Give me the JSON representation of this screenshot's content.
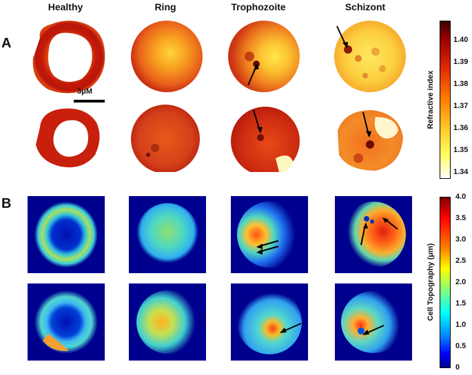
{
  "columns": [
    "Healthy",
    "Ring",
    "Trophozoite",
    "Schizont"
  ],
  "panels": [
    "A",
    "B"
  ],
  "scale_bar": "3μM",
  "colorbar_a": {
    "label": "Refractive index",
    "ticks": [
      "1.40",
      "1.39",
      "1.38",
      "1.37",
      "1.36",
      "1.35",
      "1.34"
    ]
  },
  "colorbar_b": {
    "label": "Cell Topography (μm)",
    "ticks": [
      "4.0",
      "3.5",
      "3.0",
      "2.5",
      "2.0",
      "1.5",
      "1.0",
      "0.5",
      "0"
    ]
  },
  "colors": {
    "panel_b_background": "#00008f",
    "healthy_red": "#c8200c",
    "ring_orange": "#f27a14",
    "jet_cyan": "#3fd5d0"
  }
}
